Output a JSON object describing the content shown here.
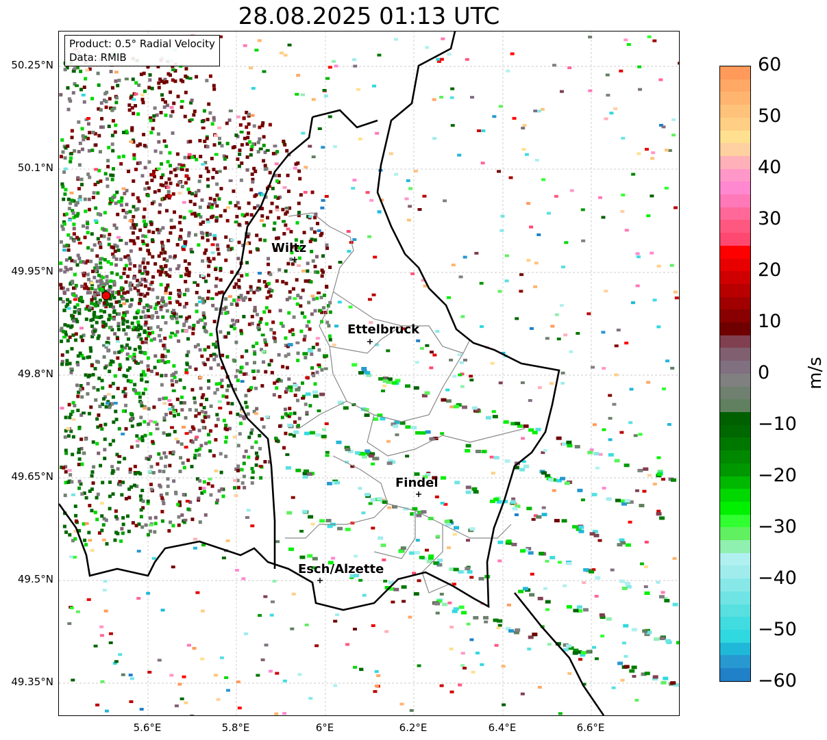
{
  "title": "28.08.2025 01:13 UTC",
  "legend": {
    "product": "Product: 0.5° Radial Velocity",
    "data": "Data: RMIB"
  },
  "lat_ticks": [
    "50.25°N",
    "50.1°N",
    "49.95°N",
    "49.8°N",
    "49.65°N",
    "49.5°N",
    "49.35°N"
  ],
  "lon_ticks": [
    "5.6°E",
    "5.8°E",
    "6°E",
    "6.2°E",
    "6.4°E",
    "6.6°E"
  ],
  "cities": [
    {
      "name": "Wiltz"
    },
    {
      "name": "Ettelbruck"
    },
    {
      "name": "Findel"
    },
    {
      "name": "Esch/Alzette"
    }
  ],
  "colorbar": {
    "unit": "m/s",
    "min": -60,
    "max": 60,
    "ticks": [
      "60",
      "50",
      "40",
      "30",
      "20",
      "10",
      "0",
      "−10",
      "−20",
      "−30",
      "−40",
      "−50",
      "−60"
    ],
    "colors_top_to_bottom": [
      "#ff9a5a",
      "#ffa866",
      "#ffb570",
      "#ffc27a",
      "#ffcf85",
      "#ffe090",
      "#ffd0a0",
      "#ffb0b8",
      "#ff98c8",
      "#ff88d0",
      "#ff78b8",
      "#ff6898",
      "#ff5880",
      "#ff4870",
      "#ff0000",
      "#e80000",
      "#d00000",
      "#b80000",
      "#a00000",
      "#880000",
      "#700000",
      "#804050",
      "#806070",
      "#807080",
      "#808080",
      "#708070",
      "#608060",
      "#006000",
      "#006800",
      "#007800",
      "#008800",
      "#009800",
      "#00b800",
      "#00d800",
      "#00f000",
      "#30ff30",
      "#60f060",
      "#90f0b0",
      "#b0f0f0",
      "#a0ecec",
      "#88e8e8",
      "#70e4e4",
      "#58e0e0",
      "#40dce0",
      "#30d8e0",
      "#20b8d8",
      "#2898d0",
      "#2080c8"
    ]
  }
}
